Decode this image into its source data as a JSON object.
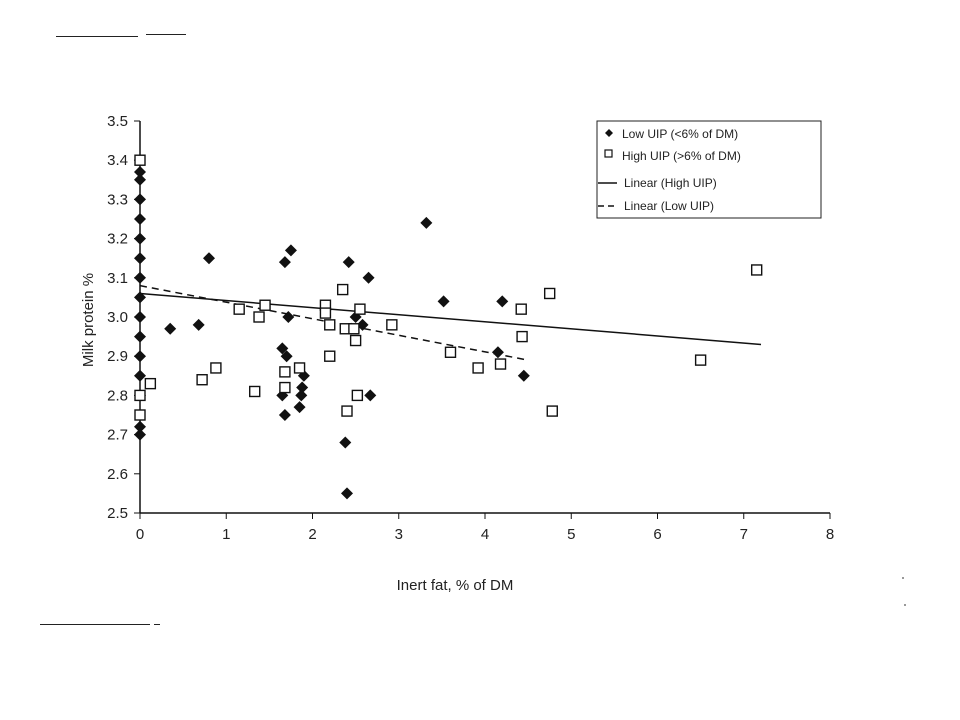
{
  "chart_data": {
    "type": "scatter",
    "title": "",
    "xlabel": "Inert fat, % of DM",
    "ylabel": "Milk protein %",
    "xlim": [
      0,
      8
    ],
    "ylim": [
      2.5,
      3.5
    ],
    "x_ticks": [
      "0",
      "1",
      "2",
      "3",
      "4",
      "5",
      "6",
      "7",
      "8"
    ],
    "y_ticks": [
      "2.5",
      "2.6",
      "2.7",
      "2.8",
      "2.9",
      "3.0",
      "3.1",
      "3.2",
      "3.3",
      "3.4",
      "3.5"
    ],
    "grid": false,
    "legend_position": "top-right",
    "legend": [
      {
        "label": "Low UIP (<6% of DM)",
        "marker": "filled-diamond"
      },
      {
        "label": "High UIP (>6% of DM)",
        "marker": "open-square"
      },
      {
        "label": "Linear (High UIP)",
        "marker": "solid-line"
      },
      {
        "label": "Linear (Low UIP)",
        "marker": "dashed-line"
      }
    ],
    "series": [
      {
        "name": "Low UIP (<6% of DM)",
        "marker": "filled-diamond",
        "points": [
          [
            0,
            2.7
          ],
          [
            0,
            2.72
          ],
          [
            0,
            2.8
          ],
          [
            0,
            2.85
          ],
          [
            0,
            2.9
          ],
          [
            0,
            2.95
          ],
          [
            0,
            3.0
          ],
          [
            0,
            3.05
          ],
          [
            0,
            3.1
          ],
          [
            0,
            3.15
          ],
          [
            0,
            3.2
          ],
          [
            0,
            3.25
          ],
          [
            0,
            3.3
          ],
          [
            0,
            3.35
          ],
          [
            0,
            3.37
          ],
          [
            0.35,
            2.97
          ],
          [
            0.68,
            2.98
          ],
          [
            0.8,
            3.15
          ],
          [
            1.65,
            2.92
          ],
          [
            1.68,
            3.14
          ],
          [
            1.75,
            3.17
          ],
          [
            1.7,
            2.9
          ],
          [
            1.65,
            2.8
          ],
          [
            1.72,
            3.0
          ],
          [
            1.68,
            2.75
          ],
          [
            1.85,
            2.77
          ],
          [
            1.88,
            2.82
          ],
          [
            1.9,
            2.85
          ],
          [
            1.87,
            2.8
          ],
          [
            2.4,
            2.55
          ],
          [
            2.38,
            2.68
          ],
          [
            2.42,
            3.14
          ],
          [
            2.45,
            2.97
          ],
          [
            2.5,
            3.0
          ],
          [
            2.58,
            2.98
          ],
          [
            2.65,
            3.1
          ],
          [
            2.67,
            2.8
          ],
          [
            3.32,
            3.24
          ],
          [
            3.52,
            3.04
          ],
          [
            4.15,
            2.91
          ],
          [
            4.2,
            3.04
          ],
          [
            4.45,
            2.85
          ]
        ]
      },
      {
        "name": "High UIP (>6% of DM)",
        "marker": "open-square",
        "points": [
          [
            0,
            3.4
          ],
          [
            0,
            2.8
          ],
          [
            0,
            2.75
          ],
          [
            0.12,
            2.83
          ],
          [
            0.72,
            2.84
          ],
          [
            0.88,
            2.87
          ],
          [
            1.15,
            3.02
          ],
          [
            1.33,
            2.81
          ],
          [
            1.38,
            3.0
          ],
          [
            1.45,
            3.03
          ],
          [
            1.68,
            2.86
          ],
          [
            1.68,
            2.82
          ],
          [
            1.85,
            2.87
          ],
          [
            2.15,
            3.03
          ],
          [
            2.15,
            3.01
          ],
          [
            2.2,
            2.98
          ],
          [
            2.2,
            2.9
          ],
          [
            2.35,
            3.07
          ],
          [
            2.38,
            2.97
          ],
          [
            2.4,
            2.76
          ],
          [
            2.48,
            2.97
          ],
          [
            2.5,
            2.94
          ],
          [
            2.52,
            2.8
          ],
          [
            2.55,
            3.02
          ],
          [
            2.92,
            2.98
          ],
          [
            3.6,
            2.91
          ],
          [
            3.92,
            2.87
          ],
          [
            4.18,
            2.88
          ],
          [
            4.42,
            3.02
          ],
          [
            4.43,
            2.95
          ],
          [
            4.75,
            3.06
          ],
          [
            4.78,
            2.76
          ],
          [
            6.5,
            2.89
          ],
          [
            7.15,
            3.12
          ]
        ]
      }
    ],
    "trendlines": [
      {
        "name": "Linear (High UIP)",
        "style": "solid",
        "x": [
          0,
          7.2
        ],
        "y": [
          3.06,
          2.93
        ]
      },
      {
        "name": "Linear (Low UIP)",
        "style": "dashed",
        "x": [
          0,
          4.5
        ],
        "y": [
          3.08,
          2.89
        ]
      }
    ]
  }
}
